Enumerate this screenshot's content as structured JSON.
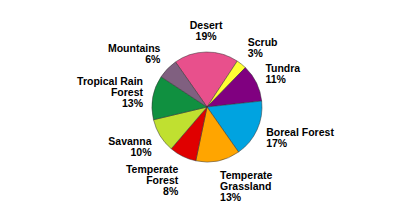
{
  "chart_data": {
    "type": "pie",
    "categories": [
      "Desert",
      "Scrub",
      "Tundra",
      "Boreal Forest",
      "Temperate Grassland",
      "Temperate Forest",
      "Savanna",
      "Tropical Rain Forest",
      "Mountains"
    ],
    "values": [
      19,
      3,
      11,
      17,
      13,
      8,
      10,
      13,
      6
    ],
    "value_labels": [
      "19%",
      "3%",
      "11%",
      "17%",
      "13%",
      "8%",
      "10%",
      "13%",
      "6%"
    ],
    "colors": [
      "#e8508c",
      "#ffff33",
      "#800080",
      "#00a3e0",
      "#ffa500",
      "#e00000",
      "#c0e030",
      "#109040",
      "#806080"
    ],
    "data_labels": true
  }
}
